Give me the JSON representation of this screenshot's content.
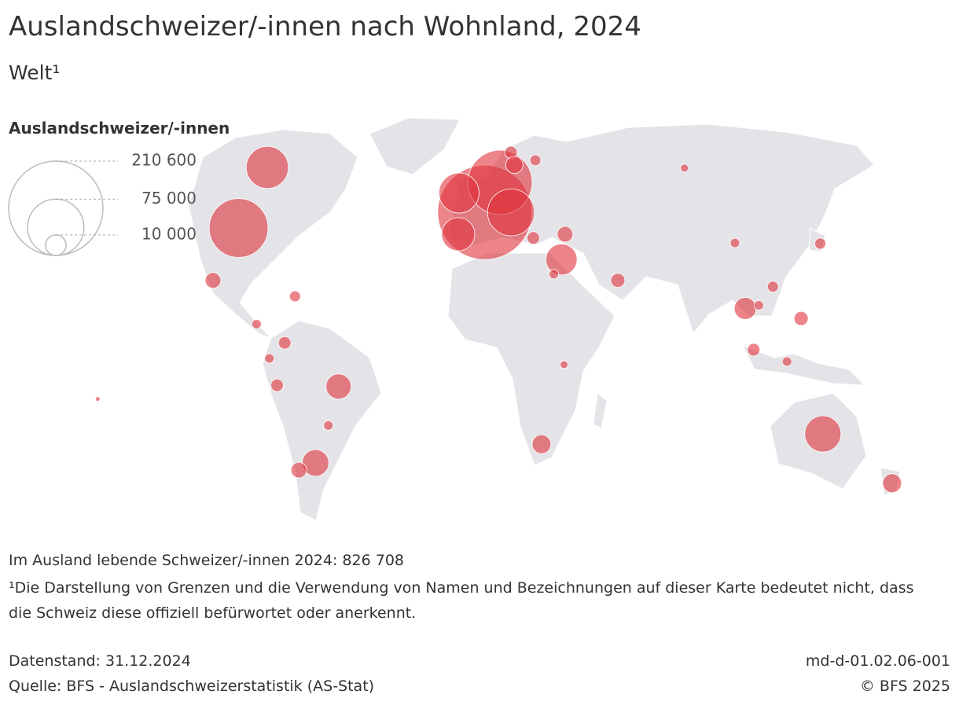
{
  "chart_data": {
    "type": "bubble-map",
    "title": "Auslandschweizer/-innen nach Wohnland, 2024",
    "subtitle": "Welt¹",
    "color": "#e0323c",
    "legend": {
      "title": "Auslandschweizer/-innen",
      "sizes": [
        {
          "value": 210600,
          "label": "210 600"
        },
        {
          "value": 75000,
          "label": "75 000"
        },
        {
          "value": 10000,
          "label": "10 000"
        }
      ]
    },
    "bubbles": [
      {
        "lon": 2.1,
        "lat": 45.8,
        "value": 210600
      },
      {
        "lon": 8,
        "lat": 55.4,
        "value": 98000
      },
      {
        "lon": 12.3,
        "lat": 45.8,
        "value": 52000
      },
      {
        "lon": -8,
        "lat": 52,
        "value": 38000
      },
      {
        "lon": -8.3,
        "lat": 38.8,
        "value": 26000
      },
      {
        "lon": -94,
        "lat": 40.8,
        "value": 82000
      },
      {
        "lon": -82.8,
        "lat": 60.2,
        "value": 42000
      },
      {
        "lon": 134,
        "lat": -25.2,
        "value": 31000
      },
      {
        "lon": 32,
        "lat": 30.7,
        "value": 23000
      },
      {
        "lon": -55,
        "lat": -10,
        "value": 15000
      },
      {
        "lon": -64,
        "lat": -34.5,
        "value": 16800
      },
      {
        "lon": 103.7,
        "lat": 15,
        "value": 11400
      },
      {
        "lon": 24.2,
        "lat": -28.5,
        "value": 8400
      },
      {
        "lon": 161,
        "lat": -41,
        "value": 8400
      },
      {
        "lon": 33.4,
        "lat": 38.8,
        "value": 5800
      },
      {
        "lon": -70.5,
        "lat": -36.8,
        "value": 5800
      },
      {
        "lon": -104,
        "lat": 24,
        "value": 5800
      },
      {
        "lon": 12.3,
        "lat": 65,
        "value": 3700
      },
      {
        "lon": 13.6,
        "lat": 61,
        "value": 7000
      },
      {
        "lon": 21.8,
        "lat": 62.5,
        "value": 2800
      },
      {
        "lon": 54,
        "lat": 24,
        "value": 4700
      },
      {
        "lon": 125.5,
        "lat": 11.8,
        "value": 4700
      },
      {
        "lon": 133,
        "lat": 35.8,
        "value": 2900
      },
      {
        "lon": 80,
        "lat": 60,
        "value": 1500
      },
      {
        "lon": 99.7,
        "lat": 36,
        "value": 2100
      },
      {
        "lon": -79,
        "lat": -9.6,
        "value": 3700
      },
      {
        "lon": -76,
        "lat": 4,
        "value": 3700
      },
      {
        "lon": -87,
        "lat": 10,
        "value": 2100
      },
      {
        "lon": -72,
        "lat": 18.9,
        "value": 2850
      },
      {
        "lon": 120,
        "lat": -2,
        "value": 2100
      },
      {
        "lon": 107,
        "lat": 1.8,
        "value": 3700
      },
      {
        "lon": 109,
        "lat": 16,
        "value": 2100
      },
      {
        "lon": 33,
        "lat": -3,
        "value": 1460
      },
      {
        "lon": 114.5,
        "lat": 22,
        "value": 2850
      },
      {
        "lon": -59,
        "lat": -22.5,
        "value": 2100
      },
      {
        "lon": -82,
        "lat": -1,
        "value": 2100
      },
      {
        "lon": 29,
        "lat": 26,
        "value": 2100
      },
      {
        "lon": 21,
        "lat": 37.6,
        "value": 3700
      },
      {
        "lon": -149,
        "lat": -14,
        "value": 500
      }
    ]
  },
  "notes": {
    "total": "Im Ausland lebende Schweizer/-innen 2024: 826 708",
    "footnote": "¹Die Darstellung von Grenzen und die Verwendung von Namen und Bezeichnungen auf dieser Karte bedeutet nicht, dass die Schweiz diese offiziell befürwortet oder anerkennt.",
    "status": "Datenstand: 31.12.2024",
    "source": "Quelle: BFS - Auslandschweizerstatistik (AS-Stat)",
    "id": "md-d-01.02.06-001",
    "copyright": "© BFS 2025"
  }
}
